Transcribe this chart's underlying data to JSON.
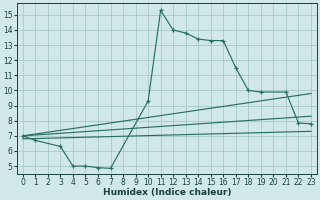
{
  "bg_color": "#d0e8e8",
  "grid_color": "#a8c8c8",
  "line_color": "#2a7060",
  "xlabel": "Humidex (Indice chaleur)",
  "xlim": [
    -0.5,
    23.5
  ],
  "ylim": [
    4.5,
    15.8
  ],
  "curve_x": [
    0,
    1,
    3,
    4,
    5,
    6,
    7,
    10,
    11,
    12,
    13,
    14,
    15,
    16,
    17,
    18,
    19,
    21,
    22,
    23
  ],
  "curve_y": [
    7.0,
    6.7,
    6.3,
    5.0,
    5.0,
    4.9,
    4.85,
    9.3,
    15.3,
    14.0,
    13.8,
    13.4,
    13.3,
    13.3,
    11.5,
    10.0,
    9.9,
    9.9,
    7.85,
    7.8
  ],
  "trend1_x": [
    0,
    23
  ],
  "trend1_y": [
    6.8,
    7.3
  ],
  "trend2_x": [
    0,
    23
  ],
  "trend2_y": [
    7.0,
    8.3
  ],
  "trend3_x": [
    0,
    23
  ],
  "trend3_y": [
    7.0,
    9.8
  ],
  "xticks": [
    0,
    1,
    2,
    3,
    4,
    5,
    6,
    7,
    8,
    9,
    10,
    11,
    12,
    13,
    14,
    15,
    16,
    17,
    18,
    19,
    20,
    21,
    22,
    23
  ],
  "yticks": [
    5,
    6,
    7,
    8,
    9,
    10,
    11,
    12,
    13,
    14,
    15
  ],
  "xlabel_fontsize": 6.5,
  "tick_fontsize": 5.5
}
